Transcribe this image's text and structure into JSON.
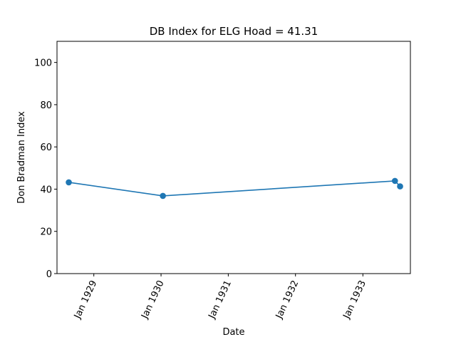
{
  "chart_data": {
    "type": "line",
    "title": "DB Index for ELG Hoad = 41.31",
    "xlabel": "Date",
    "ylabel": "Don Bradman Index",
    "ylim": [
      0,
      110
    ],
    "xlim": [
      "1928-06-15",
      "1933-09-16"
    ],
    "yticks": [
      0,
      20,
      40,
      60,
      80,
      100
    ],
    "xticks": [
      {
        "date": "1929-01-01",
        "label": "Jan 1929"
      },
      {
        "date": "1930-01-01",
        "label": "Jan 1930"
      },
      {
        "date": "1931-01-01",
        "label": "Jan 1931"
      },
      {
        "date": "1932-01-01",
        "label": "Jan 1932"
      },
      {
        "date": "1933-01-01",
        "label": "Jan 1933"
      }
    ],
    "series": [
      {
        "color": "#1f77b4",
        "points": [
          {
            "x": "1928-08-18",
            "y": 43.2
          },
          {
            "x": "1930-01-11",
            "y": 36.8
          },
          {
            "x": "1933-06-24",
            "y": 43.9
          },
          {
            "x": "1933-07-22",
            "y": 41.31
          }
        ]
      }
    ],
    "grid": false,
    "legend": "none"
  }
}
